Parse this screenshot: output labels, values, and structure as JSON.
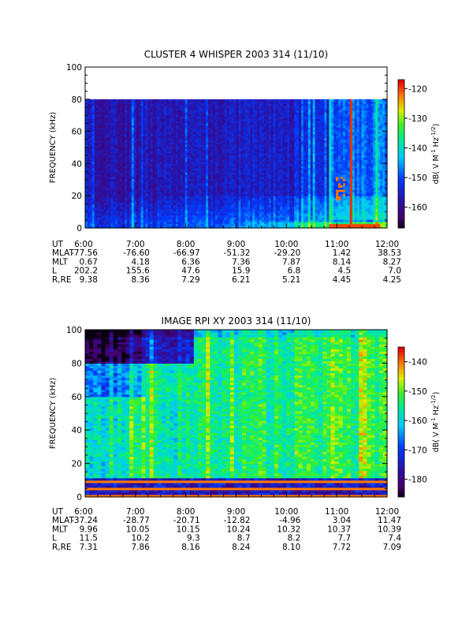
{
  "chart_data": [
    {
      "type": "heatmap",
      "title": "CLUSTER 4 WHISPER 2003 314 (11/10)",
      "ylabel": "FREQUENCY (kHz)",
      "xlabel": "",
      "ylim": [
        0,
        100
      ],
      "yticks": [
        "0",
        "20",
        "40",
        "60",
        "80",
        "100"
      ],
      "xlim": [
        "6:00",
        "12:00"
      ],
      "data_top_khz": 80,
      "colorbar": {
        "label": "dB( V M⁻¹ Hz⁻¹ᐟ²)",
        "label_parts": [
          "dB( V M",
          "-1",
          " Hz",
          "-1/2",
          ")"
        ],
        "range": [
          -167,
          -117
        ],
        "ticks": [
          "-120",
          "-130",
          "-140",
          "-150",
          "-160"
        ],
        "tick_values": [
          -120,
          -130,
          -140,
          -150,
          -160
        ]
      },
      "ephemeris": {
        "rows": [
          "UT",
          "MLAT",
          "MLT",
          "L",
          "R,RE"
        ],
        "ut": [
          "6:00",
          "7:00",
          "8:00",
          "9:00",
          "10:00",
          "11:00",
          "12:00"
        ],
        "MLAT": [
          "-77.56",
          "-76.60",
          "-66.97",
          "-51.32",
          "-29.20",
          "1.42",
          "38.53"
        ],
        "MLT": [
          "0.67",
          "4.18",
          "6.36",
          "7.36",
          "7.87",
          "8.14",
          "8.27"
        ],
        "L": [
          "202.2",
          "155.6",
          "47.6",
          "15.9",
          "6.8",
          "4.5",
          "7.0"
        ],
        "R,RE": [
          "9.38",
          "8.36",
          "7.29",
          "6.21",
          "5.21",
          "4.45",
          "4.25"
        ]
      },
      "features": {
        "background_level_db": -158,
        "plasmapause_band_khz": [
          5,
          30
        ],
        "emission_line_ut": "11:00",
        "emission_line_level_db": -120
      }
    },
    {
      "type": "heatmap",
      "title": "IMAGE RPI XY 2003 314 (11/10)",
      "ylabel": "FREQUENCY (kHz)",
      "xlabel": "",
      "ylim": [
        0,
        100
      ],
      "yticks": [
        "0",
        "20",
        "40",
        "60",
        "80",
        "100"
      ],
      "xlim": [
        "6:00",
        "12:00"
      ],
      "colorbar": {
        "label_parts": [
          "dB( V M",
          "-1",
          " Hz",
          "-1/2",
          ")"
        ],
        "range": [
          -186,
          -135
        ],
        "ticks": [
          "-140",
          "-150",
          "-160",
          "-170",
          "-180"
        ],
        "tick_values": [
          -140,
          -150,
          -160,
          -170,
          -180
        ]
      },
      "ephemeris": {
        "rows": [
          "UT",
          "MLAT",
          "MLT",
          "L",
          "R,RE"
        ],
        "ut": [
          "6:00",
          "7:00",
          "8:00",
          "9:00",
          "10:00",
          "11:00",
          "12:00"
        ],
        "MLAT": [
          "-37.24",
          "-28.77",
          "-20.71",
          "-12.82",
          "-4.96",
          "3.04",
          "11.47"
        ],
        "MLT": [
          "9.96",
          "10.05",
          "10.15",
          "10.24",
          "10.32",
          "10.37",
          "10.39"
        ],
        "L": [
          "11.5",
          "10.2",
          "9.3",
          "8.7",
          "8.2",
          "7.7",
          "7.4"
        ],
        "R,RE": [
          "7.31",
          "7.86",
          "8.16",
          "8.24",
          "8.10",
          "7.72",
          "7.09"
        ]
      },
      "features": {
        "background_level_db": -158,
        "low_band_khz": [
          0,
          12
        ]
      }
    }
  ]
}
